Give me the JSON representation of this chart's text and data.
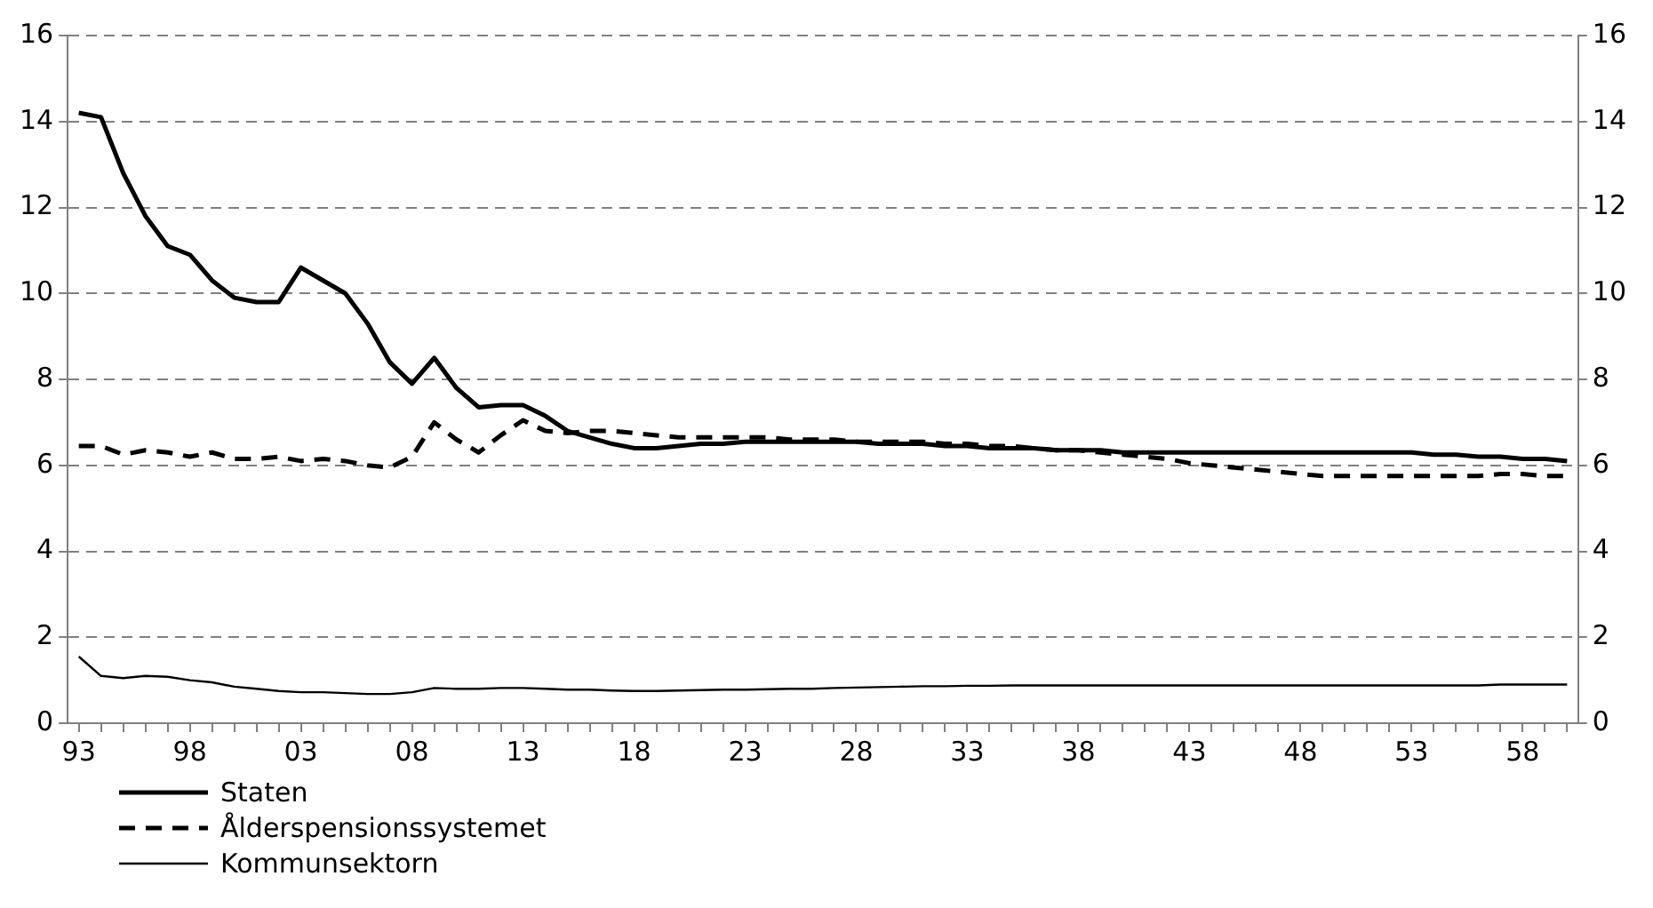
{
  "chart_data": {
    "type": "line",
    "categories": [
      "93",
      null,
      null,
      null,
      null,
      "98",
      null,
      null,
      null,
      null,
      "03",
      null,
      null,
      null,
      null,
      "08",
      null,
      null,
      null,
      null,
      "13",
      null,
      null,
      null,
      null,
      "18",
      null,
      null,
      null,
      null,
      "23",
      null,
      null,
      null,
      null,
      "28",
      null,
      null,
      null,
      null,
      "33",
      null,
      null,
      null,
      null,
      "38",
      null,
      null,
      null,
      null,
      "43",
      null,
      null,
      null,
      null,
      "48",
      null,
      null,
      null,
      null,
      "53",
      null,
      null,
      null,
      null,
      "58",
      null,
      null
    ],
    "series": [
      {
        "name": "Staten",
        "color": "#000000",
        "line_style": "solid",
        "values": [
          14.2,
          14.1,
          12.8,
          11.8,
          11.1,
          10.9,
          10.3,
          9.9,
          9.8,
          9.8,
          10.6,
          10.3,
          10.0,
          9.3,
          8.4,
          7.9,
          8.5,
          7.8,
          7.35,
          7.4,
          7.4,
          7.15,
          6.8,
          6.65,
          6.5,
          6.4,
          6.4,
          6.45,
          6.5,
          6.5,
          6.55,
          6.55,
          6.55,
          6.55,
          6.55,
          6.55,
          6.5,
          6.5,
          6.5,
          6.45,
          6.45,
          6.4,
          6.4,
          6.4,
          6.35,
          6.35,
          6.35,
          6.3,
          6.3,
          6.3,
          6.3,
          6.3,
          6.3,
          6.3,
          6.3,
          6.3,
          6.3,
          6.3,
          6.3,
          6.3,
          6.3,
          6.25,
          6.25,
          6.2,
          6.2,
          6.15,
          6.15,
          6.1
        ]
      },
      {
        "name": "Ålderspensionssystemet",
        "color": "#000000",
        "line_style": "dashed",
        "values": [
          6.45,
          6.45,
          6.25,
          6.35,
          6.3,
          6.2,
          6.3,
          6.15,
          6.15,
          6.2,
          6.1,
          6.15,
          6.1,
          6.0,
          5.95,
          6.2,
          7.0,
          6.6,
          6.3,
          6.7,
          7.05,
          6.8,
          6.75,
          6.8,
          6.8,
          6.75,
          6.7,
          6.65,
          6.65,
          6.65,
          6.65,
          6.65,
          6.6,
          6.6,
          6.6,
          6.55,
          6.55,
          6.55,
          6.55,
          6.5,
          6.5,
          6.45,
          6.45,
          6.4,
          6.35,
          6.35,
          6.3,
          6.25,
          6.2,
          6.15,
          6.05,
          6.0,
          5.95,
          5.9,
          5.85,
          5.8,
          5.75,
          5.75,
          5.75,
          5.75,
          5.75,
          5.75,
          5.75,
          5.75,
          5.8,
          5.8,
          5.75,
          5.75
        ]
      },
      {
        "name": "Kommunsektorn",
        "color": "#000000",
        "line_style": "solid",
        "values": [
          1.55,
          1.1,
          1.05,
          1.1,
          1.08,
          1.0,
          0.95,
          0.85,
          0.8,
          0.75,
          0.72,
          0.72,
          0.7,
          0.68,
          0.68,
          0.72,
          0.82,
          0.8,
          0.8,
          0.82,
          0.82,
          0.8,
          0.78,
          0.78,
          0.76,
          0.75,
          0.75,
          0.76,
          0.77,
          0.78,
          0.78,
          0.79,
          0.8,
          0.8,
          0.82,
          0.83,
          0.84,
          0.85,
          0.86,
          0.86,
          0.87,
          0.87,
          0.88,
          0.88,
          0.88,
          0.88,
          0.88,
          0.88,
          0.88,
          0.88,
          0.88,
          0.88,
          0.88,
          0.88,
          0.88,
          0.88,
          0.88,
          0.88,
          0.88,
          0.88,
          0.88,
          0.88,
          0.88,
          0.88,
          0.9,
          0.9,
          0.9,
          0.9
        ]
      }
    ],
    "ylim": [
      0,
      16
    ],
    "yticks": [
      0,
      2,
      4,
      6,
      8,
      10,
      12,
      14,
      16
    ],
    "y2lim": [
      0,
      16
    ],
    "y2ticks": [
      0,
      2,
      4,
      6,
      8,
      10,
      12,
      14,
      16
    ],
    "grid": "y",
    "legend": "bottom",
    "marker": "none"
  }
}
